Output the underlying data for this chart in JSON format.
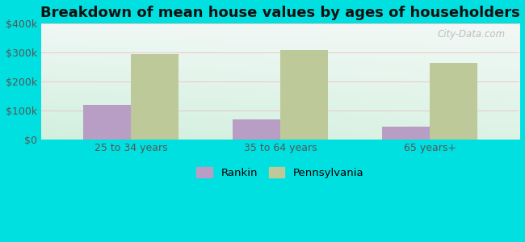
{
  "title": "Breakdown of mean house values by ages of householders",
  "categories": [
    "25 to 34 years",
    "35 to 64 years",
    "65 years+"
  ],
  "rankin_values": [
    120000,
    68000,
    45000
  ],
  "pennsylvania_values": [
    295000,
    308000,
    265000
  ],
  "ylim": [
    0,
    400000
  ],
  "yticks": [
    0,
    100000,
    200000,
    300000,
    400000
  ],
  "ytick_labels": [
    "$0",
    "$100k",
    "$200k",
    "$300k",
    "$400k"
  ],
  "rankin_color": "#b89ec4",
  "pennsylvania_color": "#bec99a",
  "background_color": "#00e0e0",
  "title_fontsize": 13,
  "bar_width": 0.32,
  "legend_labels": [
    "Rankin",
    "Pennsylvania"
  ],
  "watermark": "City-Data.com"
}
